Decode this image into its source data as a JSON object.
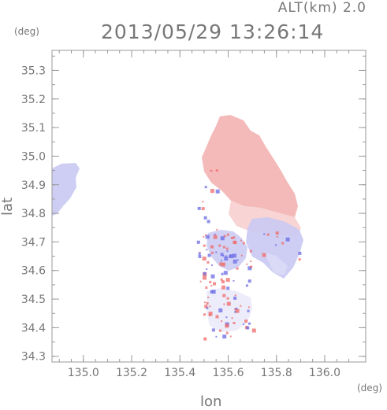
{
  "header": {
    "altitude_label": "ALT(km) 2.0",
    "timestamp": "2013/05/29 13:26:14"
  },
  "axes": {
    "lat_unit": "(deg)",
    "lon_unit": "(deg)",
    "lat_label": "lat",
    "lon_label": "lon",
    "lon_range": [
      134.87,
      136.17
    ],
    "lat_range": [
      34.28,
      35.37
    ],
    "lon_ticks": [
      135.0,
      135.2,
      135.4,
      135.6,
      135.8,
      136.0
    ],
    "lon_tick_labels": [
      "135.0",
      "135.2",
      "135.4",
      "135.6",
      "135.8",
      "136.0"
    ],
    "lat_ticks": [
      34.3,
      34.4,
      34.5,
      34.6,
      34.7,
      34.8,
      34.9,
      35.0,
      35.1,
      35.2,
      35.3
    ],
    "lat_tick_labels": [
      "34.3",
      "34.4",
      "34.5",
      "34.6",
      "34.7",
      "34.8",
      "34.9",
      "35.0",
      "35.1",
      "35.2",
      "35.3"
    ]
  },
  "colors": {
    "frame": "#9a9a9a",
    "positive": "#f3b3b3",
    "positive_light": "#f8d2d2",
    "negative": "#c9c9f3",
    "negative_light": "#dcdcf6",
    "speck_red": "#f06a6a",
    "speck_blue": "#6a6ae6"
  }
}
